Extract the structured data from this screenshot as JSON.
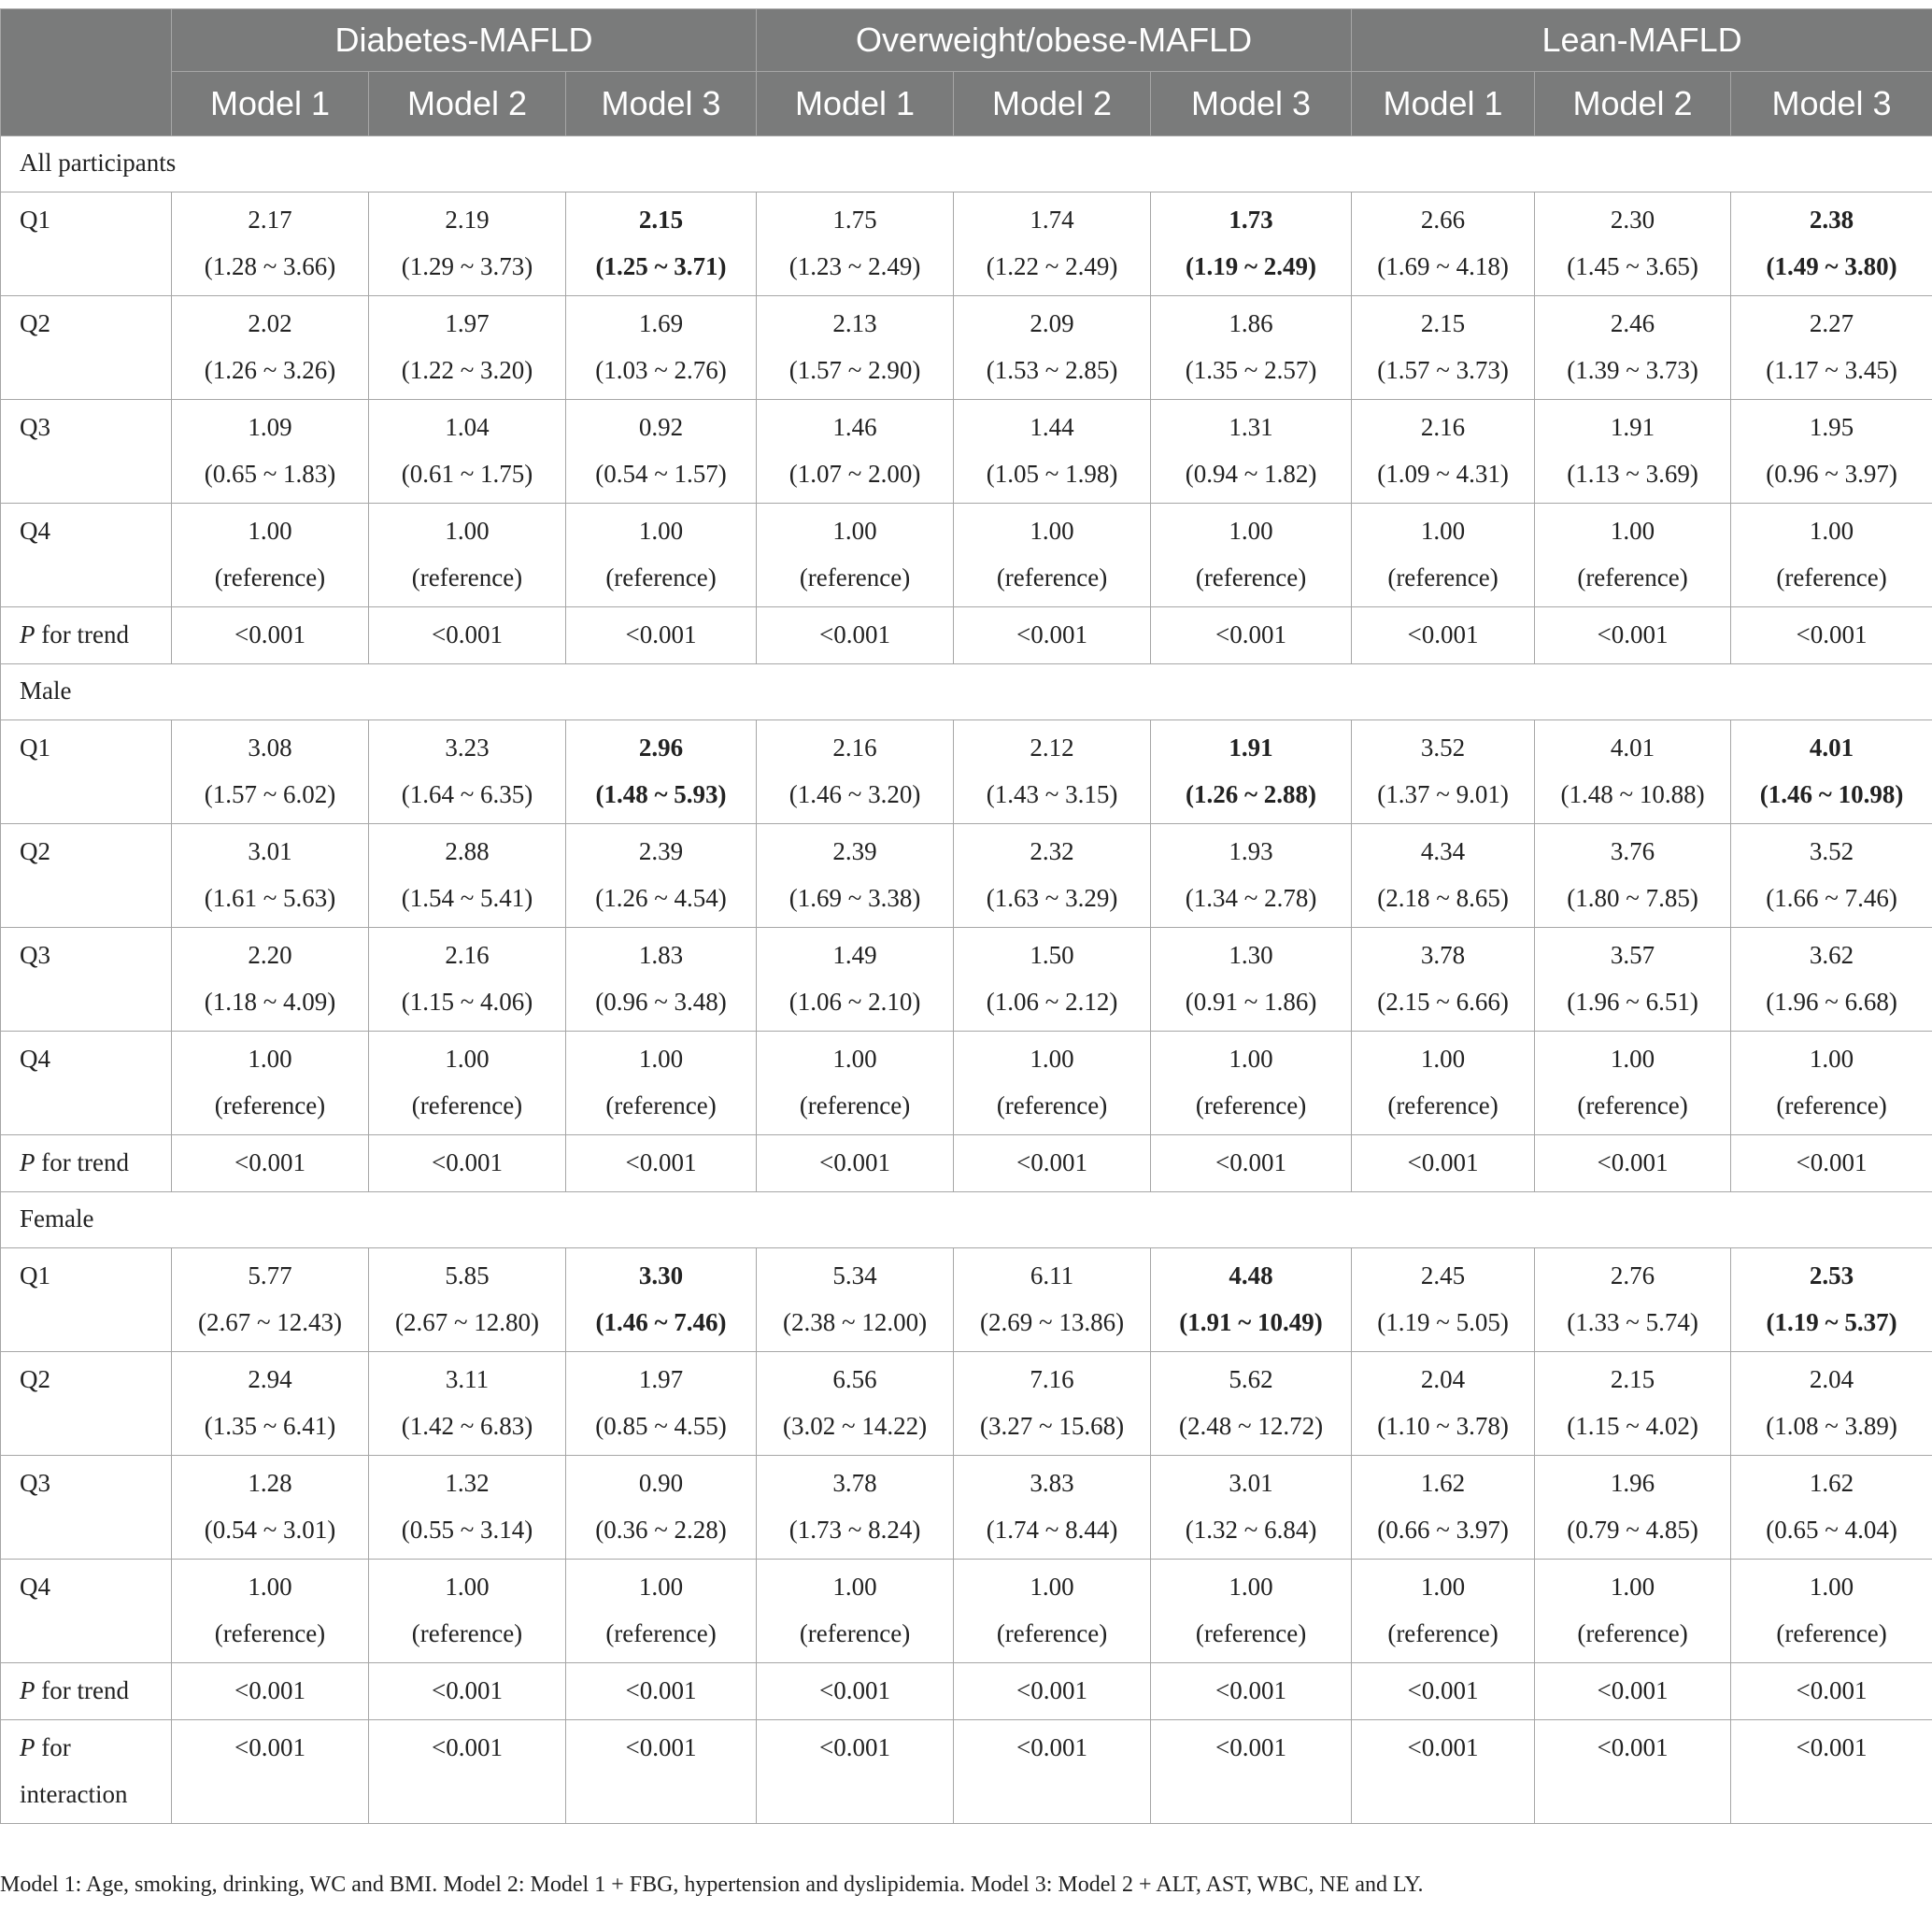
{
  "header": {
    "groups": [
      "Diabetes-MAFLD",
      "Overweight/obese-MAFLD",
      "Lean-MAFLD"
    ],
    "models": [
      "Model 1",
      "Model 2",
      "Model 3",
      "Model 1",
      "Model 2",
      "Model 3",
      "Model 1",
      "Model 2",
      "Model 3"
    ]
  },
  "sections": [
    {
      "title": "All participants",
      "rows": [
        {
          "label": "Q1",
          "cells": [
            {
              "or": "2.17",
              "ci": "(1.28 ~ 3.66)"
            },
            {
              "or": "2.19",
              "ci": "(1.29 ~ 3.73)"
            },
            {
              "or": "2.15",
              "ci": "(1.25 ~ 3.71)",
              "bold": true
            },
            {
              "or": "1.75",
              "ci": "(1.23 ~ 2.49)"
            },
            {
              "or": "1.74",
              "ci": "(1.22 ~ 2.49)"
            },
            {
              "or": "1.73",
              "ci": "(1.19 ~ 2.49)",
              "bold": true
            },
            {
              "or": "2.66",
              "ci": "(1.69 ~ 4.18)"
            },
            {
              "or": "2.30",
              "ci": "(1.45 ~ 3.65)"
            },
            {
              "or": "2.38",
              "ci": "(1.49 ~ 3.80)",
              "bold": true
            }
          ]
        },
        {
          "label": "Q2",
          "cells": [
            {
              "or": "2.02",
              "ci": "(1.26 ~ 3.26)"
            },
            {
              "or": "1.97",
              "ci": "(1.22 ~ 3.20)"
            },
            {
              "or": "1.69",
              "ci": "(1.03 ~ 2.76)"
            },
            {
              "or": "2.13",
              "ci": "(1.57 ~ 2.90)"
            },
            {
              "or": "2.09",
              "ci": "(1.53 ~ 2.85)"
            },
            {
              "or": "1.86",
              "ci": "(1.35 ~ 2.57)"
            },
            {
              "or": "2.15",
              "ci": "(1.57 ~ 3.73)"
            },
            {
              "or": "2.46",
              "ci": "(1.39 ~ 3.73)"
            },
            {
              "or": "2.27",
              "ci": "(1.17 ~ 3.45)"
            }
          ]
        },
        {
          "label": "Q3",
          "cells": [
            {
              "or": "1.09",
              "ci": "(0.65 ~ 1.83)"
            },
            {
              "or": "1.04",
              "ci": "(0.61 ~ 1.75)"
            },
            {
              "or": "0.92",
              "ci": "(0.54 ~ 1.57)"
            },
            {
              "or": "1.46",
              "ci": "(1.07 ~ 2.00)"
            },
            {
              "or": "1.44",
              "ci": "(1.05 ~ 1.98)"
            },
            {
              "or": "1.31",
              "ci": "(0.94 ~ 1.82)"
            },
            {
              "or": "2.16",
              "ci": "(1.09 ~ 4.31)"
            },
            {
              "or": "1.91",
              "ci": "(1.13 ~ 3.69)"
            },
            {
              "or": "1.95",
              "ci": "(0.96 ~ 3.97)"
            }
          ]
        },
        {
          "label": "Q4",
          "cells": [
            {
              "or": "1.00",
              "ci": "(reference)"
            },
            {
              "or": "1.00",
              "ci": "(reference)"
            },
            {
              "or": "1.00",
              "ci": "(reference)"
            },
            {
              "or": "1.00",
              "ci": "(reference)"
            },
            {
              "or": "1.00",
              "ci": "(reference)"
            },
            {
              "or": "1.00",
              "ci": "(reference)"
            },
            {
              "or": "1.00",
              "ci": "(reference)"
            },
            {
              "or": "1.00",
              "ci": "(reference)"
            },
            {
              "or": "1.00",
              "ci": "(reference)"
            }
          ]
        }
      ],
      "trend": {
        "label_p": "P",
        "label_rest": " for trend",
        "values": [
          "<0.001",
          "<0.001",
          "<0.001",
          "<0.001",
          "<0.001",
          "<0.001",
          "<0.001",
          "<0.001",
          "<0.001"
        ]
      }
    },
    {
      "title": "Male",
      "rows": [
        {
          "label": "Q1",
          "cells": [
            {
              "or": "3.08",
              "ci": "(1.57 ~ 6.02)"
            },
            {
              "or": "3.23",
              "ci": "(1.64 ~ 6.35)"
            },
            {
              "or": "2.96",
              "ci": "(1.48 ~ 5.93)",
              "bold": true
            },
            {
              "or": "2.16",
              "ci": "(1.46 ~ 3.20)"
            },
            {
              "or": "2.12",
              "ci": "(1.43 ~ 3.15)"
            },
            {
              "or": "1.91",
              "ci": "(1.26 ~ 2.88)",
              "bold": true
            },
            {
              "or": "3.52",
              "ci": "(1.37 ~ 9.01)"
            },
            {
              "or": "4.01",
              "ci": "(1.48 ~ 10.88)"
            },
            {
              "or": "4.01",
              "ci": "(1.46 ~ 10.98)",
              "bold": true
            }
          ]
        },
        {
          "label": "Q2",
          "cells": [
            {
              "or": "3.01",
              "ci": "(1.61 ~ 5.63)"
            },
            {
              "or": "2.88",
              "ci": "(1.54 ~ 5.41)"
            },
            {
              "or": "2.39",
              "ci": "(1.26 ~ 4.54)"
            },
            {
              "or": "2.39",
              "ci": "(1.69 ~ 3.38)"
            },
            {
              "or": "2.32",
              "ci": "(1.63 ~ 3.29)"
            },
            {
              "or": "1.93",
              "ci": "(1.34 ~ 2.78)"
            },
            {
              "or": "4.34",
              "ci": "(2.18 ~ 8.65)"
            },
            {
              "or": "3.76",
              "ci": "(1.80 ~ 7.85)"
            },
            {
              "or": "3.52",
              "ci": "(1.66 ~ 7.46)"
            }
          ]
        },
        {
          "label": "Q3",
          "cells": [
            {
              "or": "2.20",
              "ci": "(1.18 ~ 4.09)"
            },
            {
              "or": "2.16",
              "ci": "(1.15 ~ 4.06)"
            },
            {
              "or": "1.83",
              "ci": "(0.96 ~ 3.48)"
            },
            {
              "or": "1.49",
              "ci": "(1.06 ~ 2.10)"
            },
            {
              "or": "1.50",
              "ci": "(1.06 ~ 2.12)"
            },
            {
              "or": "1.30",
              "ci": "(0.91 ~ 1.86)"
            },
            {
              "or": "3.78",
              "ci": "(2.15 ~ 6.66)"
            },
            {
              "or": "3.57",
              "ci": "(1.96 ~ 6.51)"
            },
            {
              "or": "3.62",
              "ci": "(1.96 ~ 6.68)"
            }
          ]
        },
        {
          "label": "Q4",
          "cells": [
            {
              "or": "1.00",
              "ci": "(reference)"
            },
            {
              "or": "1.00",
              "ci": "(reference)"
            },
            {
              "or": "1.00",
              "ci": "(reference)"
            },
            {
              "or": "1.00",
              "ci": "(reference)"
            },
            {
              "or": "1.00",
              "ci": "(reference)"
            },
            {
              "or": "1.00",
              "ci": "(reference)"
            },
            {
              "or": "1.00",
              "ci": "(reference)"
            },
            {
              "or": "1.00",
              "ci": "(reference)"
            },
            {
              "or": "1.00",
              "ci": "(reference)"
            }
          ]
        }
      ],
      "trend": {
        "label_p": "P",
        "label_rest": " for trend",
        "values": [
          "<0.001",
          "<0.001",
          "<0.001",
          "<0.001",
          "<0.001",
          "<0.001",
          "<0.001",
          "<0.001",
          "<0.001"
        ]
      }
    },
    {
      "title": "Female",
      "rows": [
        {
          "label": "Q1",
          "cells": [
            {
              "or": "5.77",
              "ci": "(2.67 ~ 12.43)"
            },
            {
              "or": "5.85",
              "ci": "(2.67 ~ 12.80)"
            },
            {
              "or": "3.30",
              "ci": "(1.46 ~ 7.46)",
              "bold": true
            },
            {
              "or": "5.34",
              "ci": "(2.38 ~ 12.00)"
            },
            {
              "or": "6.11",
              "ci": "(2.69 ~ 13.86)"
            },
            {
              "or": "4.48",
              "ci": "(1.91 ~ 10.49)",
              "bold": true
            },
            {
              "or": "2.45",
              "ci": "(1.19 ~ 5.05)"
            },
            {
              "or": "2.76",
              "ci": "(1.33 ~ 5.74)"
            },
            {
              "or": "2.53",
              "ci": "(1.19 ~ 5.37)",
              "bold": true
            }
          ]
        },
        {
          "label": "Q2",
          "cells": [
            {
              "or": "2.94",
              "ci": "(1.35 ~ 6.41)"
            },
            {
              "or": "3.11",
              "ci": "(1.42 ~ 6.83)"
            },
            {
              "or": "1.97",
              "ci": "(0.85 ~ 4.55)"
            },
            {
              "or": "6.56",
              "ci": "(3.02 ~ 14.22)"
            },
            {
              "or": "7.16",
              "ci": "(3.27 ~ 15.68)"
            },
            {
              "or": "5.62",
              "ci": "(2.48 ~ 12.72)"
            },
            {
              "or": "2.04",
              "ci": "(1.10 ~ 3.78)"
            },
            {
              "or": "2.15",
              "ci": "(1.15 ~ 4.02)"
            },
            {
              "or": "2.04",
              "ci": "(1.08 ~ 3.89)"
            }
          ]
        },
        {
          "label": "Q3",
          "cells": [
            {
              "or": "1.28",
              "ci": "(0.54 ~ 3.01)"
            },
            {
              "or": "1.32",
              "ci": "(0.55 ~ 3.14)"
            },
            {
              "or": "0.90",
              "ci": "(0.36 ~ 2.28)"
            },
            {
              "or": "3.78",
              "ci": "(1.73 ~ 8.24)"
            },
            {
              "or": "3.83",
              "ci": "(1.74 ~ 8.44)"
            },
            {
              "or": "3.01",
              "ci": "(1.32 ~ 6.84)"
            },
            {
              "or": "1.62",
              "ci": "(0.66 ~ 3.97)"
            },
            {
              "or": "1.96",
              "ci": "(0.79 ~ 4.85)"
            },
            {
              "or": "1.62",
              "ci": "(0.65 ~ 4.04)"
            }
          ]
        },
        {
          "label": "Q4",
          "cells": [
            {
              "or": "1.00",
              "ci": "(reference)"
            },
            {
              "or": "1.00",
              "ci": "(reference)"
            },
            {
              "or": "1.00",
              "ci": "(reference)"
            },
            {
              "or": "1.00",
              "ci": "(reference)"
            },
            {
              "or": "1.00",
              "ci": "(reference)"
            },
            {
              "or": "1.00",
              "ci": "(reference)"
            },
            {
              "or": "1.00",
              "ci": "(reference)"
            },
            {
              "or": "1.00",
              "ci": "(reference)"
            },
            {
              "or": "1.00",
              "ci": "(reference)"
            }
          ]
        }
      ],
      "trend": {
        "label_p": "P",
        "label_rest": " for trend",
        "values": [
          "<0.001",
          "<0.001",
          "<0.001",
          "<0.001",
          "<0.001",
          "<0.001",
          "<0.001",
          "<0.001",
          "<0.001"
        ]
      },
      "interaction": {
        "label_p": "P",
        "label_line1": " for",
        "label_line2": "interaction",
        "values": [
          "<0.001",
          "<0.001",
          "<0.001",
          "<0.001",
          "<0.001",
          "<0.001",
          "<0.001",
          "<0.001",
          "<0.001"
        ]
      }
    }
  ],
  "footnote": "Model 1: Age, smoking, drinking, WC and BMI. Model 2: Model 1 + FBG, hypertension and dyslipidemia. Model 3: Model 2 + ALT, AST, WBC, NE and LY."
}
